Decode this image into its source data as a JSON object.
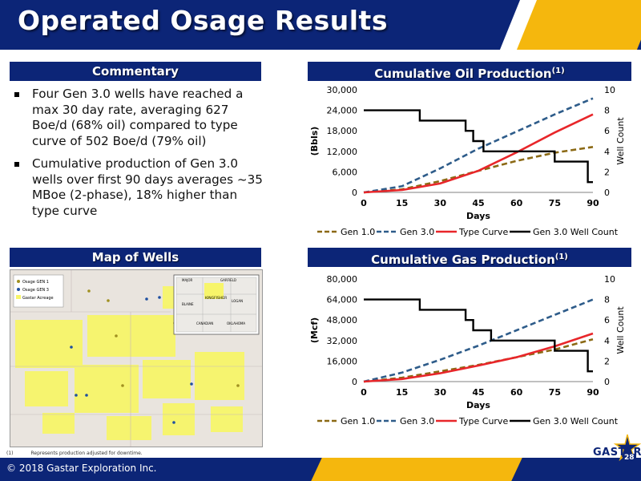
{
  "header": {
    "title": "Operated Osage Results"
  },
  "commentary": {
    "heading": "Commentary",
    "bullets": [
      "Four Gen 3.0 wells have reached a max 30 day rate, averaging 627 Boe/d (68% oil) compared to type curve of 502 Boe/d (79% oil)",
      "Cumulative production of Gen 3.0 wells over first 90 days averages ~35 MBoe (2-phase), 18% higher than type curve"
    ]
  },
  "map": {
    "heading": "Map of Wells",
    "legend": [
      "Osage GEN 1",
      "Osage GEN 3",
      "Gastar Acreage"
    ],
    "inset_labels": [
      "MAJOR",
      "GARFIELD",
      "KINGFISHER",
      "BLAINE",
      "LOGAN",
      "CANADIAN",
      "OKLAHOMA"
    ]
  },
  "colors": {
    "navy": "#0c2577",
    "gold": "#f5b70d",
    "gen1": "#8b6914",
    "gen3": "#2e5c8a",
    "type_curve": "#e8262a",
    "well_count": "#000000"
  },
  "chart_data": [
    {
      "type": "line",
      "heading": "Cumulative Oil Production",
      "heading_sup": "(1)",
      "xlabel": "Days",
      "ylabel": "(Bbls)",
      "y2label": "Well Count",
      "x_ticks": [
        "0",
        "15",
        "30",
        "45",
        "60",
        "75",
        "90"
      ],
      "y_ticks": [
        "0",
        "6,000",
        "12,000",
        "18,000",
        "24,000",
        "30,000"
      ],
      "y2_ticks": [
        "0",
        "2",
        "4",
        "6",
        "8",
        "10"
      ],
      "xlim": [
        0,
        90
      ],
      "ylim": [
        0,
        30000
      ],
      "y2lim": [
        0,
        10
      ],
      "series": [
        {
          "name": "Gen 1.0",
          "axis": "left",
          "style": "dashed",
          "x": [
            0,
            15,
            30,
            45,
            60,
            75,
            90
          ],
          "values": [
            0,
            900,
            3300,
            6300,
            9200,
            11600,
            13300
          ]
        },
        {
          "name": "Gen 3.0",
          "axis": "left",
          "style": "dashed",
          "x": [
            0,
            15,
            30,
            45,
            60,
            75,
            90
          ],
          "values": [
            0,
            1800,
            7000,
            12800,
            17800,
            22800,
            27500
          ]
        },
        {
          "name": "Type Curve",
          "axis": "left",
          "style": "solid",
          "x": [
            0,
            15,
            30,
            45,
            60,
            75,
            90
          ],
          "values": [
            0,
            700,
            2600,
            6300,
            11700,
            17500,
            22800
          ]
        },
        {
          "name": "Gen 3.0 Well Count",
          "axis": "right",
          "style": "step",
          "x": [
            0,
            22,
            22,
            40,
            40,
            43,
            43,
            47,
            47,
            75,
            75,
            88,
            88,
            90
          ],
          "values": [
            8,
            8,
            7,
            7,
            6,
            6,
            5,
            5,
            4,
            4,
            3,
            3,
            1,
            1
          ]
        }
      ]
    },
    {
      "type": "line",
      "heading": "Cumulative Gas Production",
      "heading_sup": "(1)",
      "xlabel": "Days",
      "ylabel": "(Mcf)",
      "y2label": "Well Count",
      "x_ticks": [
        "0",
        "15",
        "30",
        "45",
        "60",
        "75",
        "90"
      ],
      "y_ticks": [
        "0",
        "16,000",
        "32,000",
        "48,000",
        "64,000",
        "80,000"
      ],
      "y2_ticks": [
        "0",
        "2",
        "4",
        "6",
        "8",
        "10"
      ],
      "xlim": [
        0,
        90
      ],
      "ylim": [
        0,
        80000
      ],
      "y2lim": [
        0,
        10
      ],
      "series": [
        {
          "name": "Gen 1.0",
          "axis": "left",
          "style": "dashed",
          "x": [
            0,
            15,
            30,
            45,
            60,
            75,
            90
          ],
          "values": [
            0,
            3000,
            8000,
            13000,
            19000,
            25000,
            33000
          ]
        },
        {
          "name": "Gen 3.0",
          "axis": "left",
          "style": "dashed",
          "x": [
            0,
            15,
            30,
            45,
            60,
            75,
            90
          ],
          "values": [
            0,
            7000,
            17000,
            28000,
            40000,
            52000,
            64000
          ]
        },
        {
          "name": "Type Curve",
          "axis": "left",
          "style": "solid",
          "x": [
            0,
            15,
            30,
            45,
            60,
            75,
            90
          ],
          "values": [
            0,
            2000,
            6500,
            12500,
            19000,
            27500,
            37500
          ]
        },
        {
          "name": "Gen 3.0 Well Count",
          "axis": "right",
          "style": "step",
          "x": [
            0,
            22,
            22,
            40,
            40,
            43,
            43,
            50,
            50,
            75,
            75,
            88,
            88,
            90
          ],
          "values": [
            8,
            8,
            7,
            7,
            6,
            6,
            5,
            5,
            4,
            4,
            3,
            3,
            1,
            1
          ]
        }
      ]
    }
  ],
  "footnote": {
    "marker": "(1)",
    "text": "Represents production adjusted for downtime."
  },
  "footer": {
    "copyright": "© 2018 Gastar Exploration Inc.",
    "logo": "GASTAR",
    "page": "28"
  }
}
